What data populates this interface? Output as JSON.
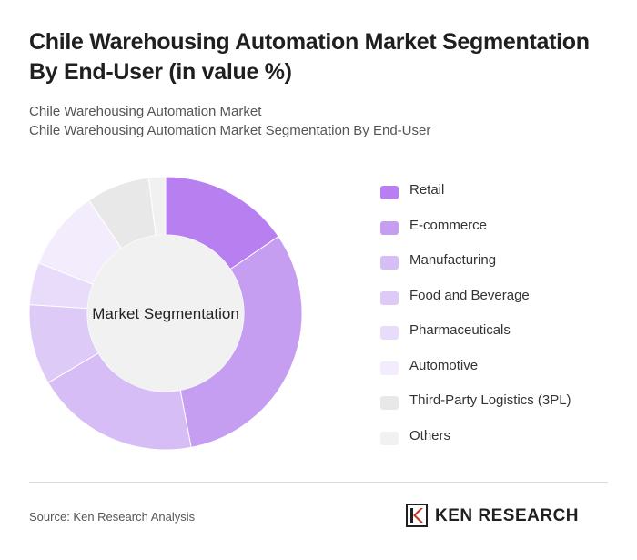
{
  "title": "Chile Warehousing Automation Market Segmentation By End-User (in value %)",
  "subtitle_line1": "Chile Warehousing Automation Market",
  "subtitle_line2": "Chile Warehousing Automation Market Segmentation By End-User",
  "chart_data": {
    "type": "pie",
    "variant": "donut",
    "center_label": "Market Segmentation",
    "categories": [
      "Retail",
      "E-commerce",
      "Manufacturing",
      "Food and Beverage",
      "Pharmaceuticals",
      "Automotive",
      "Third-Party Logistics (3PL)",
      "Others"
    ],
    "values": [
      15.5,
      31.5,
      19.5,
      9.5,
      5,
      9.5,
      7.5,
      2
    ],
    "colors": [
      "#b77ff0",
      "#c59ef2",
      "#d7bdf6",
      "#decaf7",
      "#e9dbfa",
      "#f3ecfc",
      "#e8e8e8",
      "#f1f1f1"
    ],
    "legend_position": "right"
  },
  "source": "Source: Ken Research Analysis",
  "logo": {
    "text": "KEN RESEARCH",
    "mark_icon": "ken-research-k-logo-icon"
  }
}
